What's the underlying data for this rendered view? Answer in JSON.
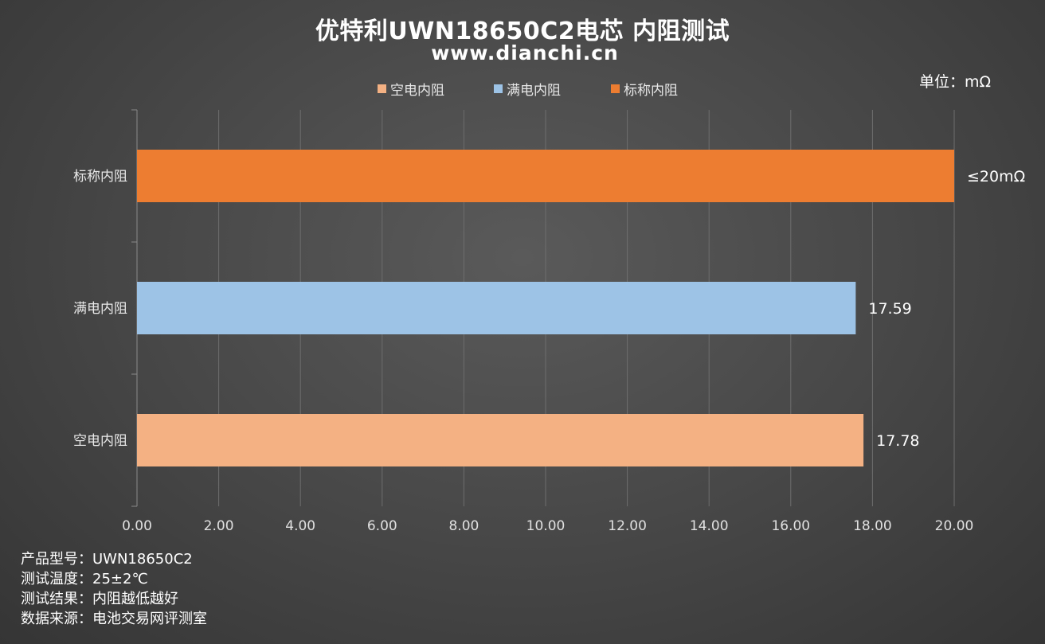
{
  "header": {
    "title": "优特利UWN18650C2电芯 内阻测试",
    "subtitle": "www.dianchi.cn",
    "unit": "单位：mΩ"
  },
  "chart_data": {
    "type": "bar",
    "orientation": "horizontal",
    "categories": [
      "空电内阻",
      "满电内阻",
      "标称内阻"
    ],
    "series": [
      {
        "name": "空电内阻",
        "category": "空电内阻",
        "value": 17.78,
        "label": "17.78",
        "color": "#F4B183"
      },
      {
        "name": "满电内阻",
        "category": "满电内阻",
        "value": 17.59,
        "label": "17.59",
        "color": "#9DC3E6"
      },
      {
        "name": "标称内阻",
        "category": "标称内阻",
        "value": 20.0,
        "label": "≤20mΩ",
        "color": "#ED7D31"
      }
    ],
    "xlim": [
      0,
      20
    ],
    "xticks": [
      "0.00",
      "2.00",
      "4.00",
      "6.00",
      "8.00",
      "10.00",
      "12.00",
      "14.00",
      "16.00",
      "18.00",
      "20.00"
    ],
    "grid": true,
    "legend": "top"
  },
  "notes": [
    "产品型号：UWN18650C2",
    "测试温度：25±2℃",
    "测试结果：内阻越低越好",
    "数据来源：电池交易网评测室"
  ]
}
